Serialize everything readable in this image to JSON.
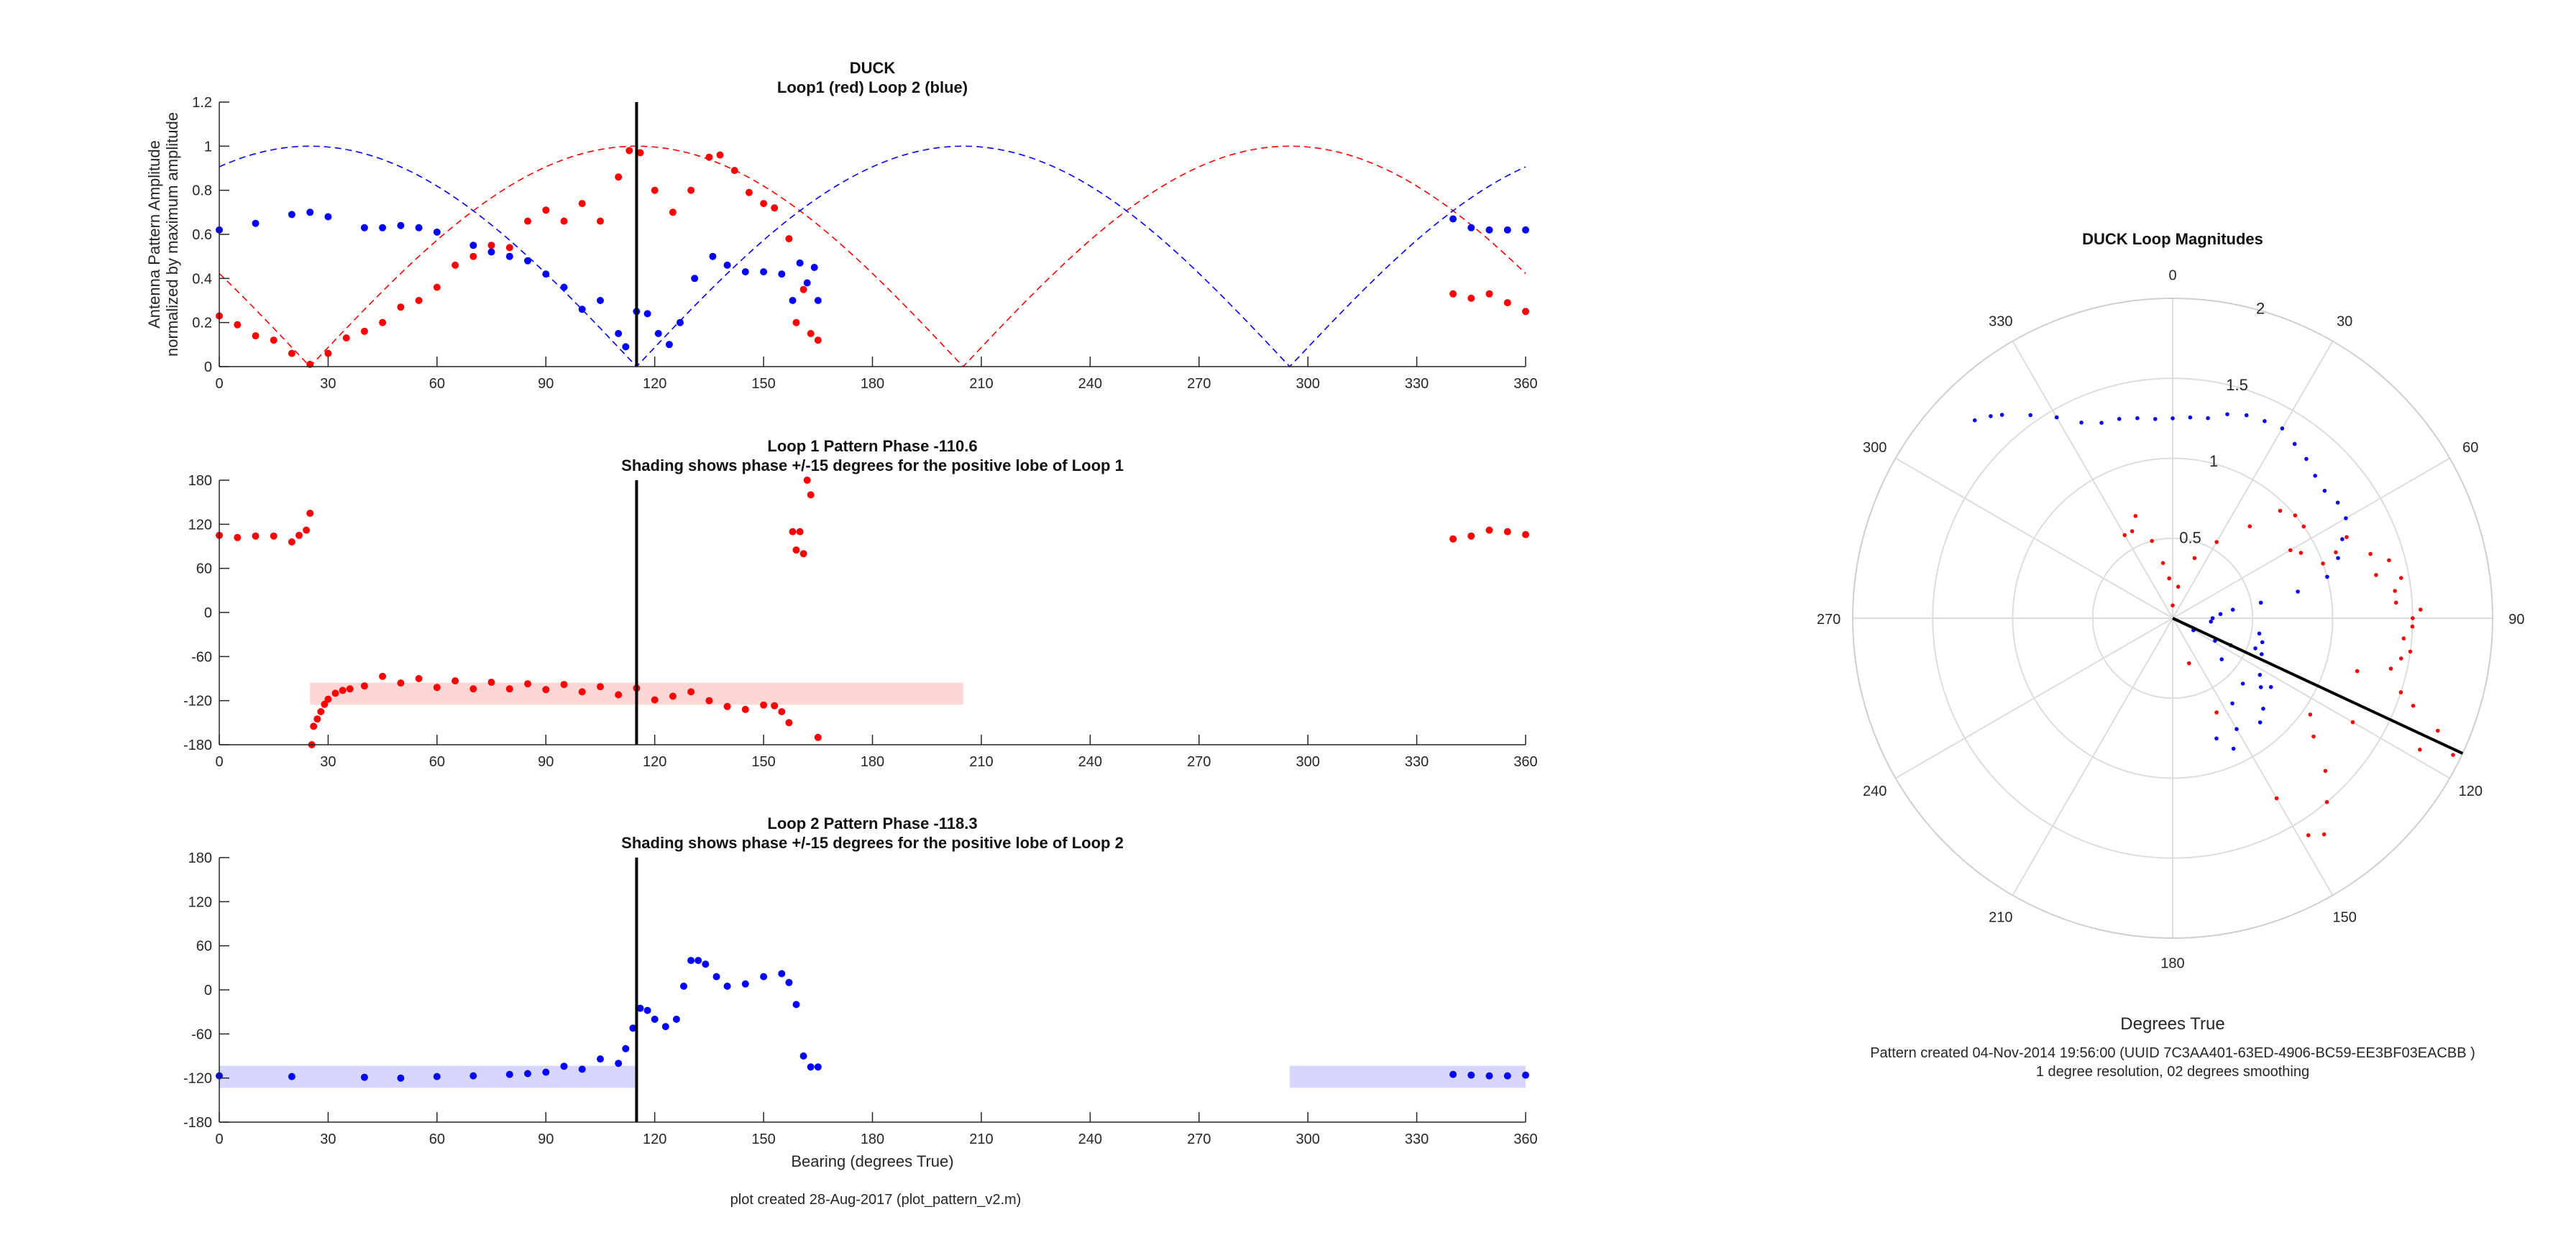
{
  "panels": [
    {
      "id": "amp",
      "title_lines": [
        "DUCK",
        "Loop1 (red) Loop 2 (blue)"
      ],
      "ylabel_lines": [
        "Antenna Pattern Amplitude",
        "normalized by maximum amplitude"
      ],
      "xlabel": "",
      "xlim": [
        0,
        360
      ],
      "ylim": [
        0,
        1.2
      ],
      "xticks": [
        0,
        30,
        60,
        90,
        120,
        150,
        180,
        210,
        240,
        270,
        300,
        330,
        360
      ],
      "yticks": [
        0,
        0.2,
        0.4,
        0.6,
        0.8,
        1,
        1.2
      ],
      "ytick_labels": [
        "0",
        "0.2",
        "0.4",
        "0.6",
        "0.8",
        "1",
        "1.2"
      ]
    },
    {
      "id": "ph1",
      "title_lines": [
        "Loop 1 Pattern Phase -110.6",
        "Shading shows phase +/-15 degrees for the positive lobe of Loop 1"
      ],
      "ylabel_lines": [],
      "xlabel": "",
      "xlim": [
        0,
        360
      ],
      "ylim": [
        -180,
        180
      ],
      "xticks": [
        0,
        30,
        60,
        90,
        120,
        150,
        180,
        210,
        240,
        270,
        300,
        330,
        360
      ],
      "yticks": [
        -180,
        -120,
        -60,
        0,
        60,
        120,
        180
      ],
      "ytick_labels": [
        "-180",
        "-120",
        "-60",
        "0",
        "60",
        "120",
        "180"
      ]
    },
    {
      "id": "ph2",
      "title_lines": [
        "Loop 2 Pattern Phase -118.3",
        "Shading shows phase +/-15 degrees for the positive lobe of Loop 2"
      ],
      "ylabel_lines": [],
      "xlabel": "Bearing (degrees True)",
      "xlim": [
        0,
        360
      ],
      "ylim": [
        -180,
        180
      ],
      "xticks": [
        0,
        30,
        60,
        90,
        120,
        150,
        180,
        210,
        240,
        270,
        300,
        330,
        360
      ],
      "yticks": [
        -180,
        -120,
        -60,
        0,
        60,
        120,
        180
      ],
      "ytick_labels": [
        "-180",
        "-120",
        "-60",
        "0",
        "60",
        "120",
        "180"
      ]
    }
  ],
  "footer_left": "plot created 28-Aug-2017 (plot_pattern_v2.m)",
  "polar": {
    "title": "DUCK Loop Magnitudes",
    "angle_labels": [
      "0",
      "30",
      "60",
      "90",
      "120",
      "150",
      "180",
      "210",
      "240",
      "270",
      "300",
      "330"
    ],
    "radial_ticks": [
      0.5,
      1,
      1.5,
      2
    ],
    "radial_labels": [
      "0.5",
      "1",
      "1.5",
      "2"
    ],
    "rmax": 2,
    "xlabel": "Degrees True",
    "caption1": "Pattern created 04-Nov-2014 19:56:00 (UUID 7C3AA401-63ED-4906-BC59-EE3BF03EACBB )",
    "caption2": "1 degree resolution, 02 degrees smoothing"
  },
  "colors": {
    "loop1": "#ff0000",
    "loop2": "#0000ff",
    "shade1": "#ffd6d6",
    "shade2": "#d6d6ff",
    "grid": "#dddddd",
    "axis": "#262626"
  },
  "chart_data": [
    {
      "type": "scatter",
      "title": "DUCK Loop1 (red) Loop 2 (blue)",
      "ylabel": "Antenna Pattern Amplitude normalized by maximum amplitude",
      "xlim": [
        0,
        360
      ],
      "ylim": [
        0,
        1.2
      ],
      "bearing_marker": 115,
      "ideal_curves": [
        {
          "name": "Loop1 ideal",
          "form": "abs(cos(bearing - 115))",
          "color": "red",
          "style": "dashed"
        },
        {
          "name": "Loop2 ideal",
          "form": "abs(cos(bearing - 25))",
          "color": "blue",
          "style": "dashed"
        }
      ],
      "series": [
        {
          "name": "Loop1",
          "color": "red",
          "x": [
            0,
            5,
            10,
            15,
            20,
            25,
            30,
            35,
            40,
            45,
            50,
            55,
            60,
            65,
            70,
            75,
            80,
            85,
            90,
            95,
            100,
            105,
            110,
            113,
            116,
            120,
            125,
            130,
            135,
            138,
            142,
            146,
            150,
            153,
            157,
            159,
            161,
            163,
            165,
            340,
            345,
            350,
            355,
            360
          ],
          "y": [
            0.23,
            0.19,
            0.14,
            0.12,
            0.06,
            0.01,
            0.06,
            0.13,
            0.16,
            0.2,
            0.27,
            0.3,
            0.36,
            0.46,
            0.5,
            0.55,
            0.54,
            0.66,
            0.71,
            0.66,
            0.74,
            0.66,
            0.86,
            0.98,
            0.97,
            0.8,
            0.7,
            0.8,
            0.95,
            0.96,
            0.89,
            0.79,
            0.74,
            0.72,
            0.58,
            0.2,
            0.35,
            0.15,
            0.12,
            0.33,
            0.31,
            0.33,
            0.29,
            0.25
          ]
        },
        {
          "name": "Loop2",
          "color": "blue",
          "x": [
            0,
            10,
            20,
            25,
            30,
            40,
            45,
            50,
            55,
            60,
            70,
            75,
            80,
            85,
            90,
            95,
            100,
            105,
            110,
            112,
            115,
            118,
            121,
            124,
            127,
            131,
            136,
            140,
            145,
            150,
            155,
            158,
            160,
            162,
            164,
            165,
            340,
            345,
            350,
            355,
            360
          ],
          "y": [
            0.62,
            0.65,
            0.69,
            0.7,
            0.68,
            0.63,
            0.63,
            0.64,
            0.63,
            0.61,
            0.55,
            0.52,
            0.5,
            0.48,
            0.42,
            0.36,
            0.26,
            0.3,
            0.15,
            0.09,
            0.25,
            0.24,
            0.15,
            0.1,
            0.2,
            0.4,
            0.5,
            0.46,
            0.43,
            0.43,
            0.42,
            0.3,
            0.47,
            0.38,
            0.45,
            0.3,
            0.67,
            0.63,
            0.62,
            0.62,
            0.62
          ]
        }
      ]
    },
    {
      "type": "scatter",
      "title": "Loop 1 Pattern Phase -110.6",
      "xlim": [
        0,
        360
      ],
      "ylim": [
        -180,
        180
      ],
      "bearing_marker": 115,
      "shading": {
        "x": [
          25,
          205
        ],
        "y": [
          -125.6,
          -95.6
        ],
        "color": "light red"
      },
      "series": [
        {
          "name": "Loop1 phase",
          "color": "red",
          "x": [
            0,
            5,
            10,
            15,
            20,
            22,
            24,
            25,
            25.5,
            26,
            27,
            28,
            29,
            30,
            32,
            34,
            36,
            40,
            45,
            50,
            55,
            60,
            65,
            70,
            75,
            80,
            85,
            90,
            95,
            100,
            105,
            110,
            115,
            120,
            125,
            130,
            135,
            140,
            145,
            150,
            153,
            155,
            157,
            158,
            159,
            160,
            161,
            162,
            163,
            165,
            340,
            345,
            350,
            355,
            360
          ],
          "y": [
            105,
            102,
            104,
            104,
            96,
            105,
            112,
            135,
            -180,
            -155,
            -145,
            -135,
            -125,
            -118,
            -110,
            -106,
            -104,
            -100,
            -87,
            -96,
            -90,
            -102,
            -93,
            -104,
            -95,
            -104,
            -97,
            -105,
            -98,
            -108,
            -101,
            -112,
            -103,
            -119,
            -114,
            -108,
            -120,
            -128,
            -132,
            -126,
            -127,
            -135,
            -150,
            110,
            85,
            110,
            80,
            180,
            160,
            -170,
            100,
            104,
            112,
            110,
            106
          ]
        }
      ]
    },
    {
      "type": "scatter",
      "title": "Loop 2 Pattern Phase -118.3",
      "xlabel": "Bearing (degrees True)",
      "xlim": [
        0,
        360
      ],
      "ylim": [
        -180,
        180
      ],
      "bearing_marker": 115,
      "shading": [
        {
          "x": [
            0,
            115
          ],
          "y": [
            -133.3,
            -103.3
          ],
          "color": "light blue"
        },
        {
          "x": [
            295,
            360
          ],
          "y": [
            -133.3,
            -103.3
          ],
          "color": "light blue"
        }
      ],
      "series": [
        {
          "name": "Loop2 phase",
          "color": "blue",
          "x": [
            0,
            20,
            40,
            50,
            60,
            70,
            80,
            85,
            90,
            95,
            100,
            105,
            110,
            112,
            114,
            116,
            118,
            120,
            123,
            126,
            128,
            130,
            132,
            134,
            137,
            140,
            145,
            150,
            155,
            157,
            159,
            161,
            163,
            165,
            340,
            345,
            350,
            355,
            360
          ],
          "y": [
            -117,
            -118,
            -119,
            -120,
            -118,
            -117,
            -115,
            -114,
            -112,
            -104,
            -108,
            -94,
            -100,
            -80,
            -52,
            -25,
            -28,
            -40,
            -50,
            -40,
            5,
            40,
            40,
            35,
            18,
            5,
            8,
            18,
            22,
            10,
            -20,
            -90,
            -105,
            -105,
            -115,
            -116,
            -117,
            -117,
            -116
          ]
        }
      ]
    },
    {
      "type": "polar",
      "title": "DUCK Loop Magnitudes",
      "xlabel": "Degrees True",
      "rlim": [
        0,
        2
      ],
      "bearing_marker": {
        "theta": 115,
        "r": 2
      },
      "series": [
        {
          "name": "Loop1",
          "color": "red",
          "theta": [
            330,
            335,
            340,
            345,
            350,
            355,
            0,
            10,
            20,
            30,
            40,
            45,
            50,
            55,
            60,
            63,
            65,
            68,
            70,
            72,
            75,
            78,
            80,
            83,
            86,
            88,
            90,
            92,
            95,
            98,
            100,
            103,
            106,
            108,
            110,
            113,
            116,
            118,
            120,
            125,
            130,
            135,
            140,
            145,
            148,
            150,
            155,
            160
          ],
          "r": [
            0.6,
            0.6,
            0.68,
            0.5,
            0.35,
            0.25,
            0.08,
            0.2,
            0.4,
            0.55,
            0.75,
            0.95,
            1.0,
            1.0,
            0.85,
            0.9,
            1.2,
            1.1,
            1.0,
            1.3,
            1.4,
            1.3,
            1.45,
            1.4,
            1.4,
            1.55,
            1.5,
            1.5,
            1.45,
            1.5,
            1.45,
            1.4,
            1.2,
            1.5,
            1.6,
            1.8,
            1.95,
            1.75,
            1.3,
            1.05,
            1.15,
            1.35,
            1.5,
            1.65,
            1.6,
            1.3,
            0.65,
            0.3
          ]
        },
        {
          "name": "Loop2",
          "color": "blue",
          "theta": [
            315,
            318,
            320,
            325,
            330,
            335,
            340,
            345,
            350,
            355,
            0,
            5,
            10,
            15,
            20,
            25,
            30,
            35,
            40,
            45,
            50,
            55,
            60,
            65,
            70,
            75,
            78,
            80,
            82,
            85,
            90,
            95,
            100,
            105,
            110,
            112,
            115,
            118,
            120,
            123,
            125,
            128,
            130,
            133,
            135,
            140,
            145,
            150,
            155,
            160
          ],
          "r": [
            1.75,
            1.7,
            1.66,
            1.55,
            1.45,
            1.35,
            1.3,
            1.29,
            1.27,
            1.25,
            1.25,
            1.26,
            1.27,
            1.32,
            1.35,
            1.36,
            1.37,
            1.33,
            1.3,
            1.26,
            1.24,
            1.26,
            1.25,
            1.17,
            1.1,
            1.0,
            0.8,
            0.56,
            0.38,
            0.3,
            0.25,
            0.24,
            0.55,
            0.58,
            0.55,
            0.6,
            0.4,
            0.3,
            0.15,
            0.65,
            0.75,
            0.7,
            0.4,
            0.6,
            0.8,
            0.85,
            0.65,
            0.8,
            0.9,
            0.8
          ]
        }
      ]
    }
  ]
}
